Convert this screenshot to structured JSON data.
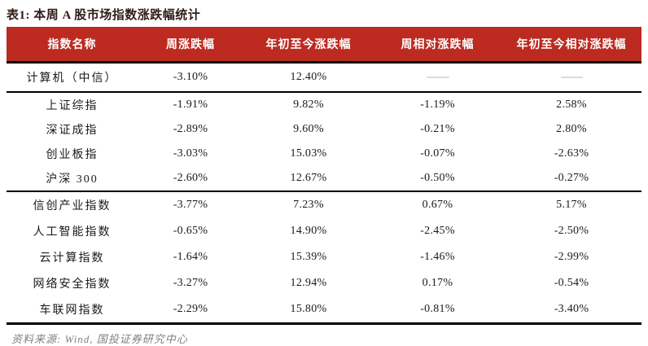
{
  "title": "表1: 本周 A 股市场指数涨跌幅统计",
  "source_note": "资料来源: Wind, 国投证券研究中心",
  "colors": {
    "header_bg": "#bc2a20",
    "header_text": "#ffffff",
    "title_text": "#2f1c16",
    "body_text": "#1a1a1a",
    "dash_text": "#b5b5b5",
    "note_text": "#808080",
    "rule": "#000000"
  },
  "table": {
    "columns": [
      "指数名称",
      "周涨跌幅",
      "年初至今涨跌幅",
      "周相对涨跌幅",
      "年初至今相对涨跌幅"
    ],
    "groups": [
      [
        [
          "计算机（中信）",
          "-3.10%",
          "12.40%",
          "——",
          "——"
        ]
      ],
      [
        [
          "上证综指",
          "-1.91%",
          "9.82%",
          "-1.19%",
          "2.58%"
        ],
        [
          "深证成指",
          "-2.89%",
          "9.60%",
          "-0.21%",
          "2.80%"
        ],
        [
          "创业板指",
          "-3.03%",
          "15.03%",
          "-0.07%",
          "-2.63%"
        ],
        [
          "沪深 300",
          "-2.60%",
          "12.67%",
          "-0.50%",
          "-0.27%"
        ]
      ],
      [
        [
          "信创产业指数",
          "-3.77%",
          "7.23%",
          "0.67%",
          "5.17%"
        ],
        [
          "人工智能指数",
          "-0.65%",
          "14.90%",
          "-2.45%",
          "-2.50%"
        ],
        [
          "云计算指数",
          "-1.64%",
          "15.39%",
          "-1.46%",
          "-2.99%"
        ],
        [
          "网络安全指数",
          "-3.27%",
          "12.94%",
          "0.17%",
          "-0.54%"
        ],
        [
          "车联网指数",
          "-2.29%",
          "15.80%",
          "-0.81%",
          "-3.40%"
        ]
      ]
    ]
  }
}
